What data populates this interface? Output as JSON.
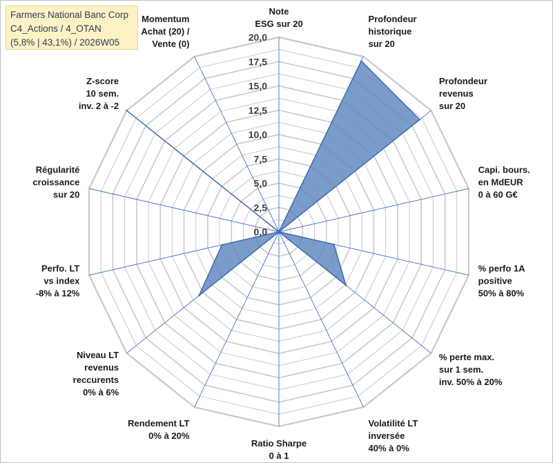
{
  "info_box": {
    "line1": "Farmers National Banc Corp",
    "line2": "C4_Actions / 4_OTAN",
    "line3": "(5,8% | 43,1%) / 2026W05"
  },
  "colors": {
    "fill": "#5b86bf",
    "stroke": "#3f6ab0",
    "spoke": "#4472c4",
    "grid": "#c8c8c8"
  },
  "chart_data": {
    "type": "radar",
    "rmin": 0,
    "rmax": 20,
    "tick_step": 2.5,
    "tick_labels": [
      "0,0",
      "2,5",
      "5,0",
      "7,5",
      "10,0",
      "12,5",
      "15,0",
      "17,5",
      "20,0"
    ],
    "axes": [
      [
        "Note",
        "ESG sur 20"
      ],
      [
        "Profondeur",
        "historique",
        "sur 20"
      ],
      [
        "Profondeur",
        "revenus",
        "sur 20"
      ],
      [
        "Capi. bours.",
        "en MdEUR",
        "0 à 60 G€"
      ],
      [
        "% perfo 1A",
        "positive",
        "50% à 80%"
      ],
      [
        "% perte max.",
        "sur 1 sem.",
        "inv. 50% à 20%"
      ],
      [
        "Volatilité LT",
        "inversée",
        "40% à 0%"
      ],
      [
        "Ratio Sharpe",
        "0 à 1"
      ],
      [
        "Rendement LT",
        "0% à 20%"
      ],
      [
        "Niveau LT",
        "revenus",
        "reccurents",
        "0% à 6%"
      ],
      [
        "Perfo. LT",
        "vs index",
        "-8% à 12%"
      ],
      [
        "Régularité",
        "croissance",
        "sur 20"
      ],
      [
        "Z-score",
        "10 sem.",
        "inv. 2 à -2"
      ],
      [
        "Momentum",
        "Achat (20) /",
        "Vente (0)"
      ]
    ],
    "series": [
      {
        "values": [
          0,
          19.5,
          18.5,
          0,
          5.8,
          8.8,
          0,
          0,
          0,
          10.5,
          6.0,
          0,
          20,
          0
        ]
      }
    ]
  }
}
